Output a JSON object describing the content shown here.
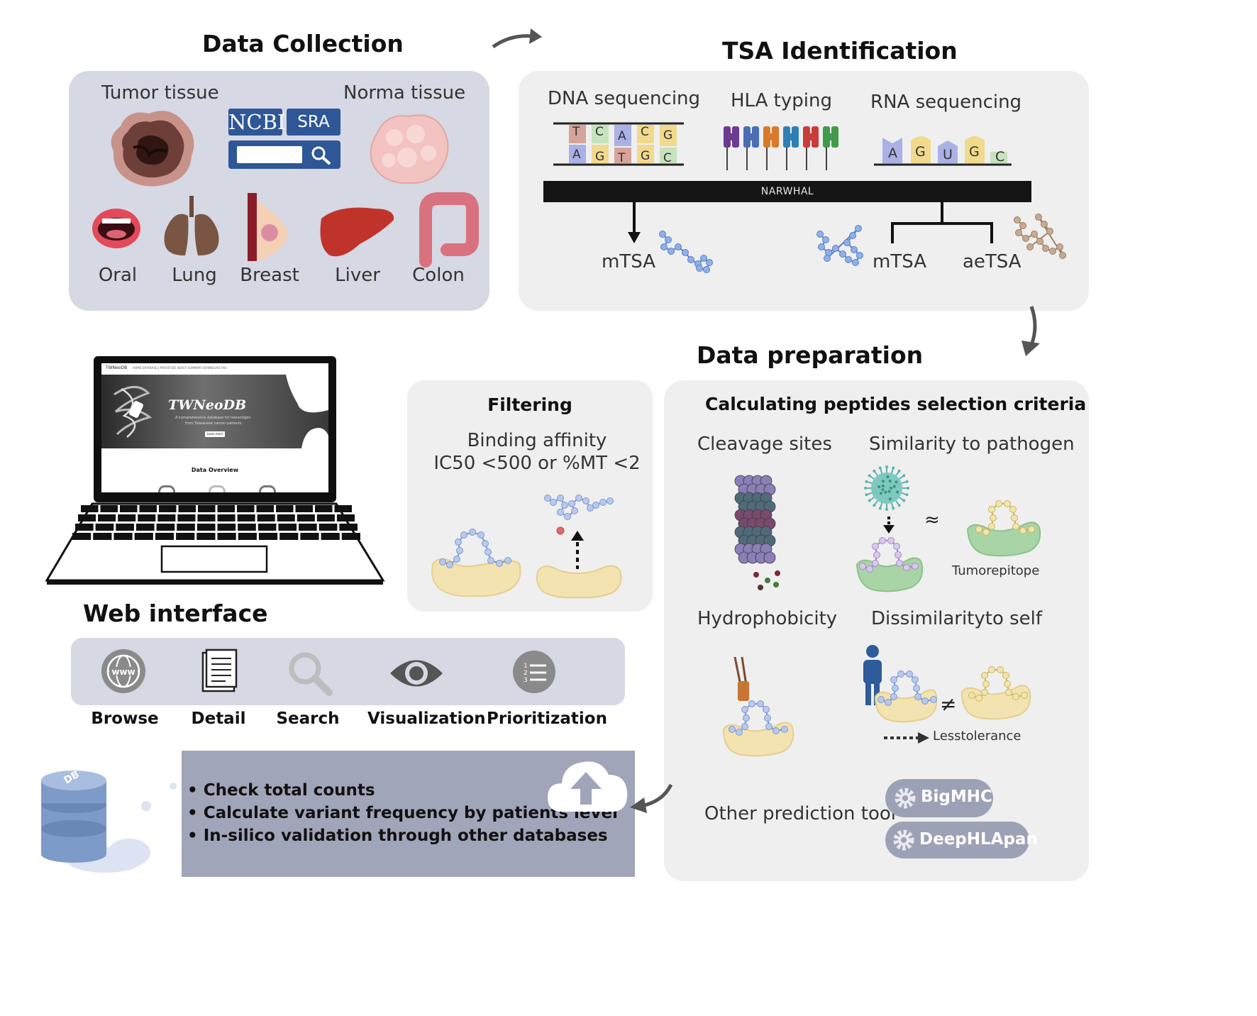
{
  "data_collection": {
    "title": "Data Collection",
    "tumor_label": "Tumor tissue",
    "normal_label": "Norma tissue",
    "ncbi_label": "NCBI",
    "sra_label": "SRA",
    "organs": [
      "Oral",
      "Lung",
      "Breast",
      "Liver",
      "Colon"
    ]
  },
  "tsa_identification": {
    "title": "TSA Identification",
    "dna_label": "DNA sequencing",
    "hla_label": "HLA typing",
    "rna_label": "RNA sequencing",
    "dna_top": [
      "T",
      "C",
      "A",
      "C",
      "G"
    ],
    "dna_bottom": [
      "A",
      "G",
      "T",
      "G",
      "C"
    ],
    "rna_bases": [
      "A",
      "G",
      "U",
      "G",
      "C"
    ],
    "pipeline_label": "NARWHAL",
    "mtsa_left": "mTSA",
    "mtsa_right": "mTSA",
    "aetsa": "aeTSA"
  },
  "data_preparation": {
    "title": "Data preparation",
    "filtering": {
      "title": "Filtering",
      "line1": "Binding affinity",
      "line2": "IC50 <500  or  %MT <2"
    },
    "criteria": {
      "title": "Calculating peptides selection criteria",
      "cleavage": "Cleavage sites",
      "similarity": "Similarity to pathogen",
      "approx": "≈",
      "tumor_epitope": "Tumorepitope",
      "hydrophobicity": "Hydrophobicity",
      "dissimilarity": "Dissimilarityto self",
      "not_equal": "≠",
      "less_tolerance": "Lesstolerance",
      "other_tool": "Other prediction tool",
      "tools": [
        "BigMHC",
        "DeepHLApan"
      ]
    }
  },
  "web_interface": {
    "title": "Web interface",
    "laptop": {
      "brand": "TWNeoDB",
      "nav": "HOME   DATABASE ▾   PRIORITIZE   ABOUT   SUMMARY   DOWNLOAD   FAQ",
      "hero_title": "TWNeoDB",
      "hero_sub1": "A comprehensive database for neoantigen",
      "hero_sub2": "from Taiwanese cancer patients",
      "button": "Learn more",
      "overview": "Data Overview"
    },
    "features": [
      "Browse",
      "Detail",
      "Search",
      "Visualization",
      "Prioritization"
    ]
  },
  "database_box": {
    "db_icon_text": "DB",
    "bullets": [
      "Check total counts",
      "Calculate variant frequency by patients level",
      "In-silico validation through other databases"
    ]
  },
  "colors": {
    "panel_dark": "#d6d8e3",
    "panel_light": "#efefef",
    "box_slate": "#a1a5b9",
    "tool_badge": "#9da1b5",
    "cradle": "#f3e3b1",
    "peptide": "#a8bce8",
    "green_mhc": "#a9d4a6"
  }
}
